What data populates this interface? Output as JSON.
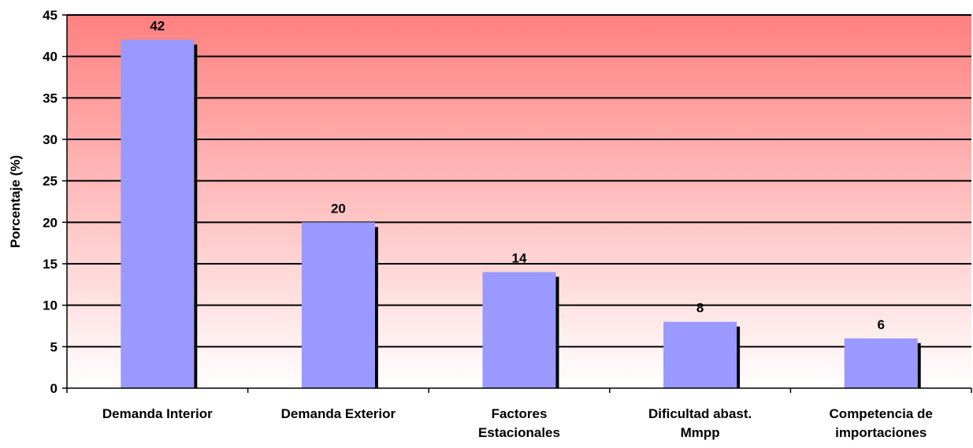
{
  "chart_data": {
    "type": "bar",
    "title": "",
    "xlabel": "",
    "ylabel": "Porcentaje (%)",
    "ylim": [
      0,
      45
    ],
    "yticks": [
      "0",
      "5",
      "10",
      "15",
      "20",
      "25",
      "30",
      "35",
      "40",
      "45"
    ],
    "grid": true,
    "legend": "none",
    "categories": [
      [
        "Demanda Interior"
      ],
      [
        "Demanda Exterior"
      ],
      [
        "Factores",
        "Estacionales"
      ],
      [
        "Dificultad abast.",
        "Mmpp"
      ],
      [
        "Competencia de",
        "importaciones"
      ]
    ],
    "values": [
      42,
      20,
      14,
      8,
      6
    ],
    "data_labels": [
      "42",
      "20",
      "14",
      "8",
      "6"
    ],
    "colors": {
      "bar": "#9999ff",
      "bar_shadow": "#000000",
      "background_top": "#ff8080",
      "background_bottom": "#ffffff",
      "gridline": "#000000"
    }
  }
}
